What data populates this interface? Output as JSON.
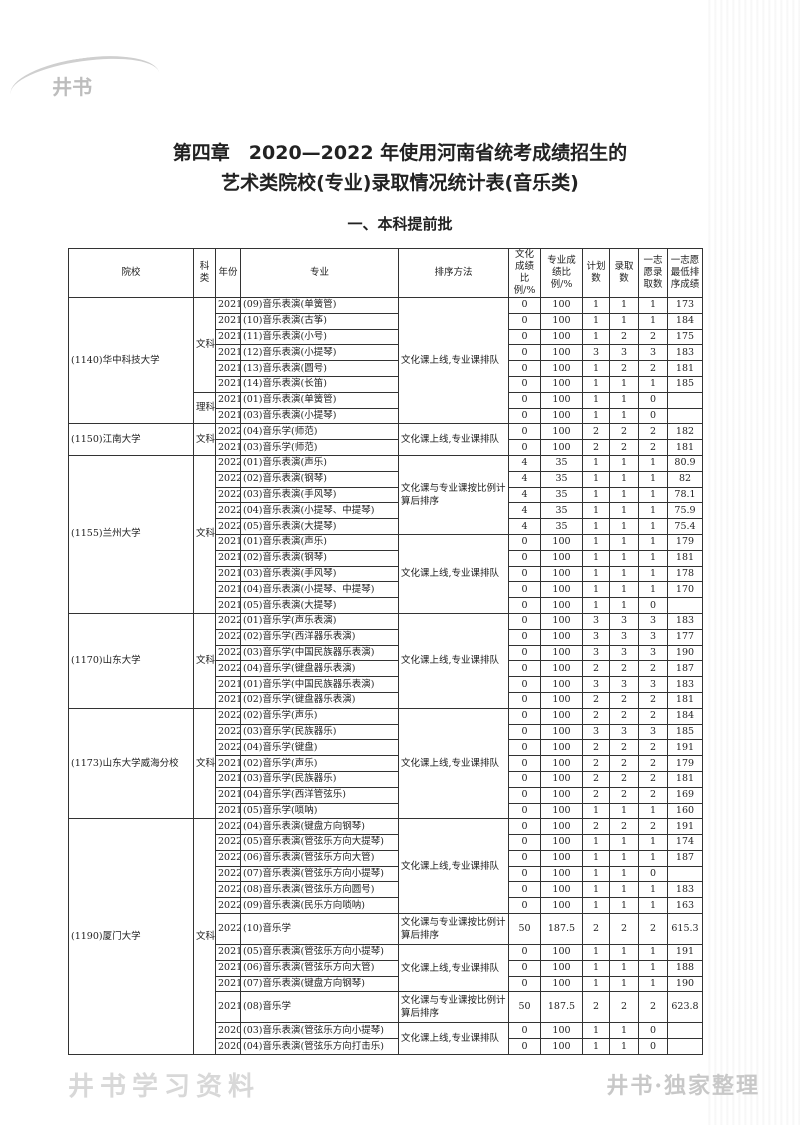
{
  "logo": "井书",
  "title_line1": "第四章　2020—2022 年使用河南省统考成绩招生的",
  "title_line2": "艺术类院校(专业)录取情况统计表(音乐类)",
  "subtitle": "一、本科提前批",
  "watermark": "井书学习资料",
  "footer": "井书·独家整理",
  "headers": [
    "院校",
    "科类",
    "年份",
    "专业",
    "排序方法",
    "文化成绩比例/%",
    "专业成绩比例/%",
    "计划数",
    "录取数",
    "一志愿录取数",
    "一志愿最低排序成绩"
  ],
  "schools": [
    {
      "name": "(1140)华中科技大学",
      "categories": [
        {
          "name": "文科",
          "rows": 6
        },
        {
          "name": "理科",
          "rows": 2
        }
      ],
      "methods": [
        {
          "text": "文化课上线,专业课排队",
          "rows": 8
        }
      ],
      "rows": [
        [
          "2021",
          "(09)音乐表演(单簧管)",
          "0",
          "100",
          "1",
          "1",
          "1",
          "173"
        ],
        [
          "2021",
          "(10)音乐表演(古筝)",
          "0",
          "100",
          "1",
          "1",
          "1",
          "184"
        ],
        [
          "2021",
          "(11)音乐表演(小号)",
          "0",
          "100",
          "1",
          "2",
          "2",
          "175"
        ],
        [
          "2021",
          "(12)音乐表演(小提琴)",
          "0",
          "100",
          "3",
          "3",
          "3",
          "183"
        ],
        [
          "2021",
          "(13)音乐表演(圆号)",
          "0",
          "100",
          "1",
          "2",
          "2",
          "181"
        ],
        [
          "2021",
          "(14)音乐表演(长笛)",
          "0",
          "100",
          "1",
          "1",
          "1",
          "185"
        ],
        [
          "2021",
          "(01)音乐表演(单簧管)",
          "0",
          "100",
          "1",
          "1",
          "0",
          ""
        ],
        [
          "2021",
          "(03)音乐表演(小提琴)",
          "0",
          "100",
          "1",
          "1",
          "0",
          ""
        ]
      ]
    },
    {
      "name": "(1150)江南大学",
      "categories": [
        {
          "name": "文科",
          "rows": 2
        }
      ],
      "methods": [
        {
          "text": "文化课上线,专业课排队",
          "rows": 2
        }
      ],
      "rows": [
        [
          "2022",
          "(04)音乐学(师范)",
          "0",
          "100",
          "2",
          "2",
          "2",
          "182"
        ],
        [
          "2021",
          "(03)音乐学(师范)",
          "0",
          "100",
          "2",
          "2",
          "2",
          "181"
        ]
      ]
    },
    {
      "name": "(1155)兰州大学",
      "categories": [
        {
          "name": "文科",
          "rows": 10
        }
      ],
      "methods": [
        {
          "text": "文化课与专业课按比例计算后排序",
          "rows": 5
        },
        {
          "text": "文化课上线,专业课排队",
          "rows": 5
        }
      ],
      "rows": [
        [
          "2022",
          "(01)音乐表演(声乐)",
          "4",
          "35",
          "1",
          "1",
          "1",
          "80.9"
        ],
        [
          "2022",
          "(02)音乐表演(钢琴)",
          "4",
          "35",
          "1",
          "1",
          "1",
          "82"
        ],
        [
          "2022",
          "(03)音乐表演(手风琴)",
          "4",
          "35",
          "1",
          "1",
          "1",
          "78.1"
        ],
        [
          "2022",
          "(04)音乐表演(小提琴、中提琴)",
          "4",
          "35",
          "1",
          "1",
          "1",
          "75.9"
        ],
        [
          "2022",
          "(05)音乐表演(大提琴)",
          "4",
          "35",
          "1",
          "1",
          "1",
          "75.4"
        ],
        [
          "2021",
          "(01)音乐表演(声乐)",
          "0",
          "100",
          "1",
          "1",
          "1",
          "179"
        ],
        [
          "2021",
          "(02)音乐表演(钢琴)",
          "0",
          "100",
          "1",
          "1",
          "1",
          "181"
        ],
        [
          "2021",
          "(03)音乐表演(手风琴)",
          "0",
          "100",
          "1",
          "1",
          "1",
          "178"
        ],
        [
          "2021",
          "(04)音乐表演(小提琴、中提琴)",
          "0",
          "100",
          "1",
          "1",
          "1",
          "170"
        ],
        [
          "2021",
          "(05)音乐表演(大提琴)",
          "0",
          "100",
          "1",
          "1",
          "0",
          ""
        ]
      ]
    },
    {
      "name": "(1170)山东大学",
      "categories": [
        {
          "name": "文科",
          "rows": 6
        }
      ],
      "methods": [
        {
          "text": "文化课上线,专业课排队",
          "rows": 6
        }
      ],
      "rows": [
        [
          "2022",
          "(01)音乐学(声乐表演)",
          "0",
          "100",
          "3",
          "3",
          "3",
          "183"
        ],
        [
          "2022",
          "(02)音乐学(西洋器乐表演)",
          "0",
          "100",
          "3",
          "3",
          "3",
          "177"
        ],
        [
          "2022",
          "(03)音乐学(中国民族器乐表演)",
          "0",
          "100",
          "3",
          "3",
          "3",
          "190"
        ],
        [
          "2022",
          "(04)音乐学(键盘器乐表演)",
          "0",
          "100",
          "2",
          "2",
          "2",
          "187"
        ],
        [
          "2021",
          "(01)音乐学(中国民族器乐表演)",
          "0",
          "100",
          "3",
          "3",
          "3",
          "183"
        ],
        [
          "2021",
          "(02)音乐学(键盘器乐表演)",
          "0",
          "100",
          "2",
          "2",
          "2",
          "181"
        ]
      ]
    },
    {
      "name": "(1173)山东大学威海分校",
      "categories": [
        {
          "name": "文科",
          "rows": 7
        }
      ],
      "methods": [
        {
          "text": "文化课上线,专业课排队",
          "rows": 7
        }
      ],
      "rows": [
        [
          "2022",
          "(02)音乐学(声乐)",
          "0",
          "100",
          "2",
          "2",
          "2",
          "184"
        ],
        [
          "2022",
          "(03)音乐学(民族器乐)",
          "0",
          "100",
          "3",
          "3",
          "3",
          "185"
        ],
        [
          "2022",
          "(04)音乐学(键盘)",
          "0",
          "100",
          "2",
          "2",
          "2",
          "191"
        ],
        [
          "2021",
          "(02)音乐学(声乐)",
          "0",
          "100",
          "2",
          "2",
          "2",
          "179"
        ],
        [
          "2021",
          "(03)音乐学(民族器乐)",
          "0",
          "100",
          "2",
          "2",
          "2",
          "181"
        ],
        [
          "2021",
          "(04)音乐学(西洋管弦乐)",
          "0",
          "100",
          "2",
          "2",
          "2",
          "169"
        ],
        [
          "2021",
          "(05)音乐学(唢呐)",
          "0",
          "100",
          "1",
          "1",
          "1",
          "160"
        ]
      ]
    },
    {
      "name": "(1190)厦门大学",
      "categories": [
        {
          "name": "文科",
          "rows": 13
        }
      ],
      "methods": [
        {
          "text": "文化课上线,专业课排队",
          "rows": 6
        },
        {
          "text": "文化课与专业课按比例计算后排序",
          "rows": 1
        },
        {
          "text": "文化课上线,专业课排队",
          "rows": 3
        },
        {
          "text": "文化课与专业课按比例计算后排序",
          "rows": 1
        },
        {
          "text": "文化课上线,专业课排队",
          "rows": 2
        }
      ],
      "rows": [
        [
          "2022",
          "(04)音乐表演(键盘方向钢琴)",
          "0",
          "100",
          "2",
          "2",
          "2",
          "191"
        ],
        [
          "2022",
          "(05)音乐表演(管弦乐方向大提琴)",
          "0",
          "100",
          "1",
          "1",
          "1",
          "174"
        ],
        [
          "2022",
          "(06)音乐表演(管弦乐方向大管)",
          "0",
          "100",
          "1",
          "1",
          "1",
          "187"
        ],
        [
          "2022",
          "(07)音乐表演(管弦乐方向小提琴)",
          "0",
          "100",
          "1",
          "1",
          "0",
          ""
        ],
        [
          "2022",
          "(08)音乐表演(管弦乐方向圆号)",
          "0",
          "100",
          "1",
          "1",
          "1",
          "183"
        ],
        [
          "2022",
          "(09)音乐表演(民乐方向唢呐)",
          "0",
          "100",
          "1",
          "1",
          "1",
          "163"
        ],
        [
          "2022",
          "(10)音乐学",
          "50",
          "187.5",
          "2",
          "2",
          "2",
          "615.3"
        ],
        [
          "2021",
          "(05)音乐表演(管弦乐方向小提琴)",
          "0",
          "100",
          "1",
          "1",
          "1",
          "191"
        ],
        [
          "2021",
          "(06)音乐表演(管弦乐方向大管)",
          "0",
          "100",
          "1",
          "1",
          "1",
          "188"
        ],
        [
          "2021",
          "(07)音乐表演(键盘方向钢琴)",
          "0",
          "100",
          "1",
          "1",
          "1",
          "190"
        ],
        [
          "2021",
          "(08)音乐学",
          "50",
          "187.5",
          "2",
          "2",
          "2",
          "623.8"
        ],
        [
          "2020",
          "(03)音乐表演(管弦乐方向小提琴)",
          "0",
          "100",
          "1",
          "1",
          "0",
          ""
        ],
        [
          "2020",
          "(04)音乐表演(管弦乐方向打击乐)",
          "0",
          "100",
          "1",
          "1",
          "0",
          ""
        ]
      ]
    }
  ]
}
